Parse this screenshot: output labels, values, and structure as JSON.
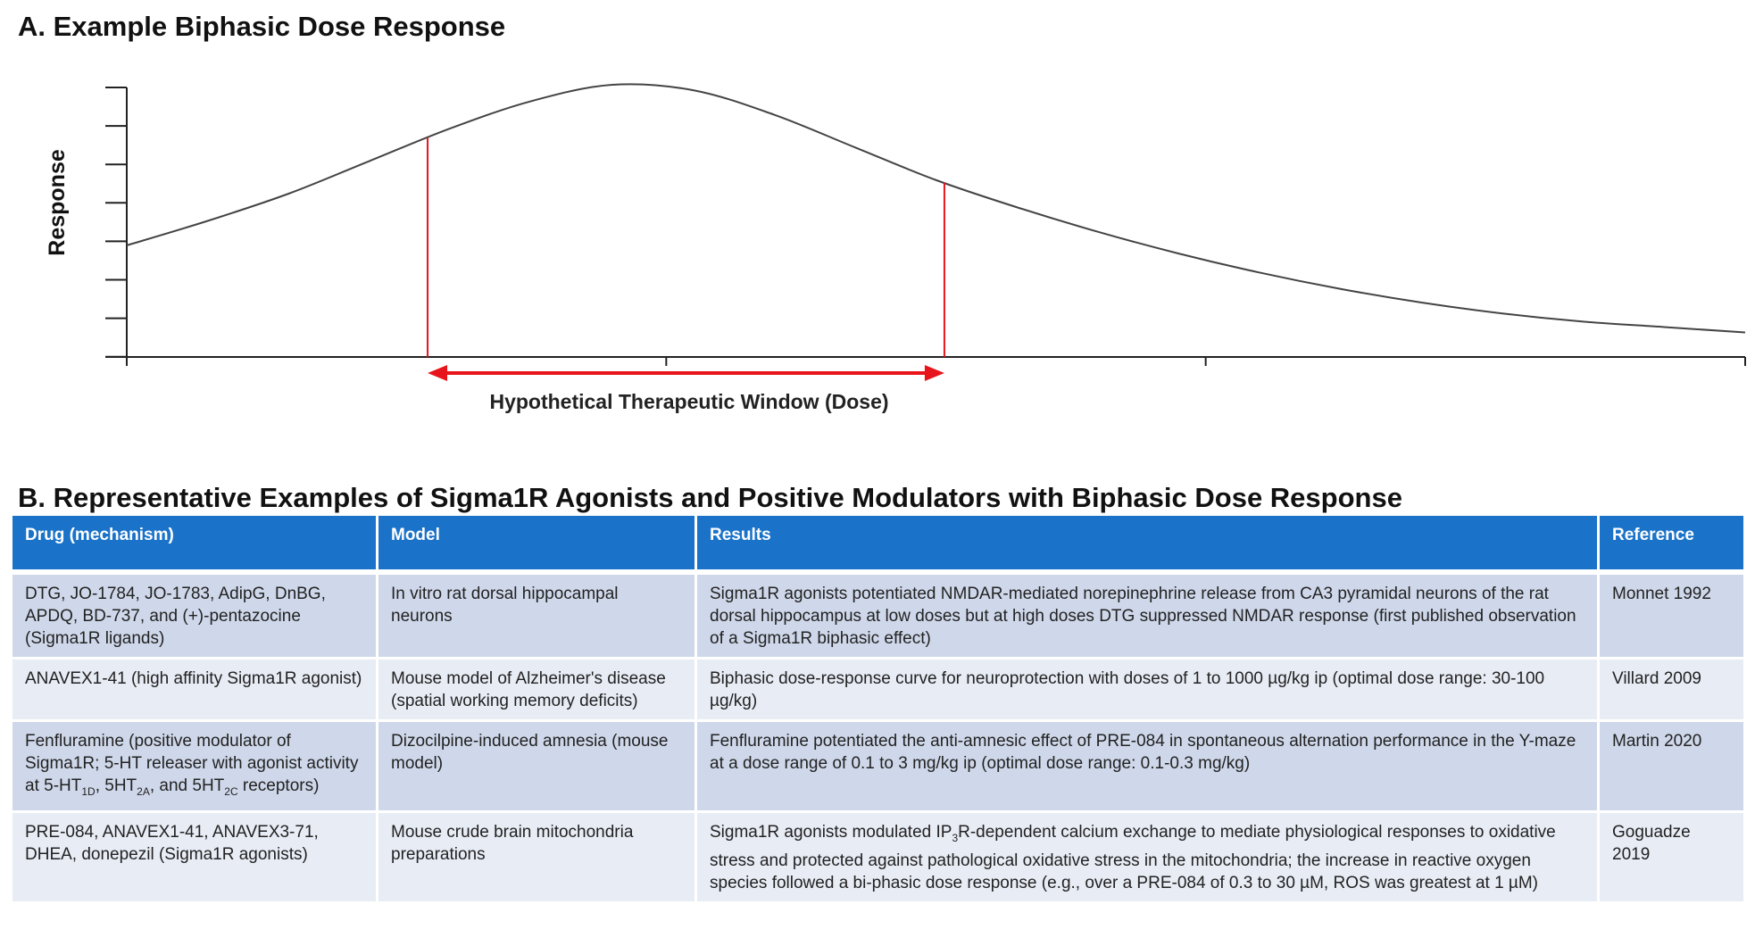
{
  "panel_a": {
    "title": "A. Example Biphasic Dose Response"
  },
  "chart_data": {
    "type": "line",
    "title": "A. Example Biphasic Dose Response",
    "ylabel": "Response",
    "xlabel": "",
    "window_label": "Hypothetical Therapeutic Window (Dose)",
    "x_major_ticks": 4,
    "y_ticks": 8,
    "x": [
      0,
      0.05,
      0.1,
      0.15,
      0.2,
      0.25,
      0.3,
      0.35,
      0.4,
      0.45,
      0.5,
      0.55,
      0.6,
      0.65,
      0.7,
      0.75,
      0.8,
      0.85,
      0.9,
      0.95,
      1.0
    ],
    "y": [
      0.41,
      0.5,
      0.6,
      0.72,
      0.84,
      0.94,
      1.0,
      0.98,
      0.89,
      0.77,
      0.65,
      0.55,
      0.46,
      0.38,
      0.31,
      0.25,
      0.2,
      0.16,
      0.13,
      0.11,
      0.09
    ],
    "window_x": [
      0.1859,
      0.5052
    ],
    "colors": {
      "curve": "#444444",
      "window": "#e8141b"
    }
  },
  "panel_b": {
    "title": "B. Representative Examples of Sigma1R Agonists and Positive Modulators with Biphasic Dose Response",
    "headers": [
      "Drug (mechanism)",
      "Model",
      "Results",
      "Reference"
    ],
    "rows": [
      {
        "drug": "DTG, JO-1784, JO-1783, AdipG, DnBG, APDQ, BD-737, and (+)-pentazocine (Sigma1R ligands)",
        "model": "In vitro rat dorsal hippocampal neurons",
        "results": "Sigma1R agonists potentiated NMDAR-mediated norepinephrine release from CA3 pyramidal neurons of the rat dorsal hippocampus at low doses but at high doses DTG suppressed NMDAR response (first published observation of a Sigma1R biphasic effect)",
        "reference": "Monnet 1992"
      },
      {
        "drug": "ANAVEX1-41 (high affinity Sigma1R agonist)",
        "model": "Mouse model of Alzheimer's disease (spatial working memory deficits)",
        "results": "Biphasic dose-response curve for neuroprotection with doses of 1 to 1000 µg/kg ip (optimal dose range: 30-100 µg/kg)",
        "reference": "Villard 2009"
      },
      {
        "drug_a": "Fenfluramine (positive modulator of Sigma1R; 5-HT releaser with agonist activity at 5-HT",
        "drug_sub1": "1D",
        "drug_b": ", 5HT",
        "drug_sub2": "2A",
        "drug_c": ", and 5HT",
        "drug_sub3": "2C",
        "drug_d": " receptors)",
        "model": "Dizocilpine-induced amnesia (mouse model)",
        "results": "Fenfluramine potentiated the anti-amnesic effect of PRE-084 in spontaneous alternation performance in the Y-maze at a dose range of 0.1 to 3 mg/kg ip (optimal dose range: 0.1-0.3 mg/kg)",
        "reference": "Martin 2020"
      },
      {
        "drug": "PRE-084, ANAVEX1-41, ANAVEX3-71, DHEA, donepezil (Sigma1R agonists)",
        "model": "Mouse crude brain mitochondria preparations",
        "results_a": "Sigma1R agonists modulated IP",
        "results_sub": "3",
        "results_b": "R-dependent calcium exchange to mediate physiological responses to oxidative stress and protected against pathological oxidative stress in the mitochondria; the increase in reactive oxygen species followed a bi-phasic dose response (e.g., over a PRE-084 of 0.3 to 30 µM, ROS was greatest at 1 µM)",
        "reference": "Goguadze 2019"
      }
    ]
  }
}
